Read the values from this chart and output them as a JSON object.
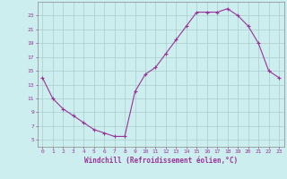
{
  "x": [
    0,
    1,
    2,
    3,
    4,
    5,
    6,
    7,
    8,
    9,
    10,
    11,
    12,
    13,
    14,
    15,
    16,
    17,
    18,
    19,
    20,
    21,
    22,
    23
  ],
  "y": [
    14,
    11,
    9.5,
    8.5,
    7.5,
    6.5,
    6,
    5.5,
    5.5,
    12,
    14.5,
    15.5,
    17.5,
    19.5,
    21.5,
    23.5,
    23.5,
    23.5,
    24,
    23,
    21.5,
    19,
    15,
    14
  ],
  "xlabel": "Windchill (Refroidissement éolien,°C)",
  "ylim": [
    4,
    25
  ],
  "xlim": [
    -0.5,
    23.5
  ],
  "yticks": [
    5,
    7,
    9,
    11,
    13,
    15,
    17,
    19,
    21,
    23
  ],
  "xticks": [
    0,
    1,
    2,
    3,
    4,
    5,
    6,
    7,
    8,
    9,
    10,
    11,
    12,
    13,
    14,
    15,
    16,
    17,
    18,
    19,
    20,
    21,
    22,
    23
  ],
  "line_color": "#993399",
  "marker": "+",
  "bg_color": "#cceeee",
  "grid_color": "#aacccc",
  "tick_label_color": "#993399",
  "axis_label_color": "#993399"
}
